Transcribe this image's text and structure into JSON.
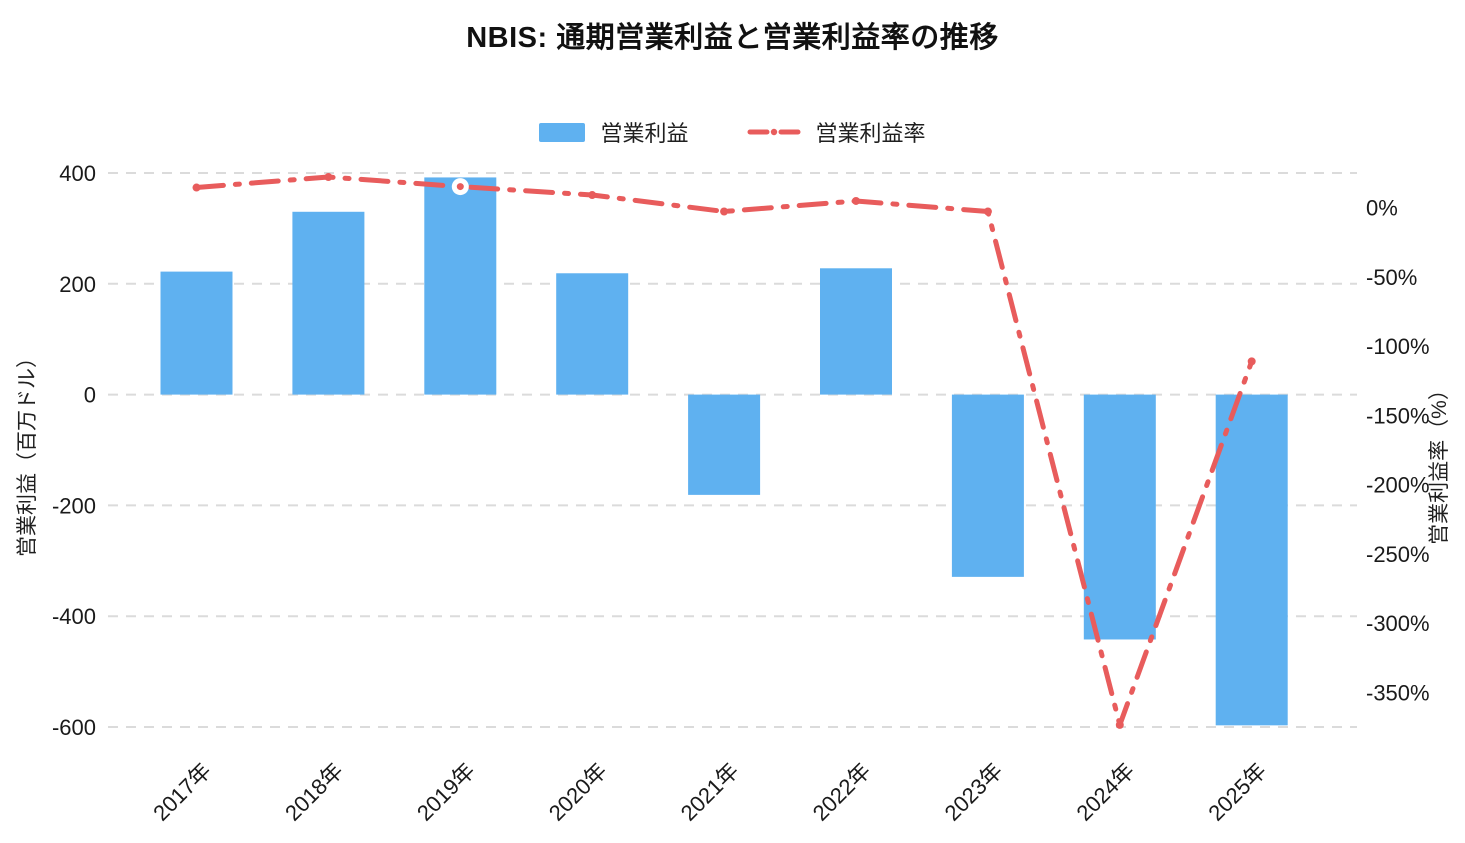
{
  "chart_data": {
    "type": "bar",
    "title": "NBIS: 通期営業利益と営業利益率の推移",
    "categories": [
      "2017年",
      "2018年",
      "2019年",
      "2020年",
      "2021年",
      "2022年",
      "2023年",
      "2024年",
      "2025年"
    ],
    "series": [
      {
        "name": "営業利益",
        "type": "bar",
        "axis": "left",
        "color": "#5FB1F0",
        "values": [
          222,
          330,
          392,
          219,
          -181,
          228,
          -329,
          -442,
          -597
        ]
      },
      {
        "name": "営業利益率",
        "type": "line",
        "axis": "right",
        "color": "#E85C5C",
        "line_style": "dash-dot",
        "highlight_index": 2,
        "values": [
          14.5,
          22.1,
          15.2,
          9.1,
          -2.8,
          4.8,
          -2.8,
          -373.5,
          -111
        ]
      }
    ],
    "left_axis": {
      "label": "営業利益（百万ドル）",
      "ticks": [
        400,
        200,
        0,
        -200,
        -400,
        -600
      ],
      "ylim": [
        -600,
        400
      ]
    },
    "right_axis": {
      "label": "営業利益率（%）",
      "ticks": [
        "0%",
        "-50%",
        "-100%",
        "-150%",
        "-200%",
        "-250%",
        "-300%",
        "-350%"
      ],
      "tick_values": [
        0,
        -50,
        -100,
        -150,
        -200,
        -250,
        -300,
        -350
      ],
      "ylim": [
        -375,
        25
      ]
    },
    "grid": "horizontal-dashed",
    "grid_color": "#DBDBDB",
    "text_color": "#1a1a1a",
    "legend_position": "top"
  }
}
